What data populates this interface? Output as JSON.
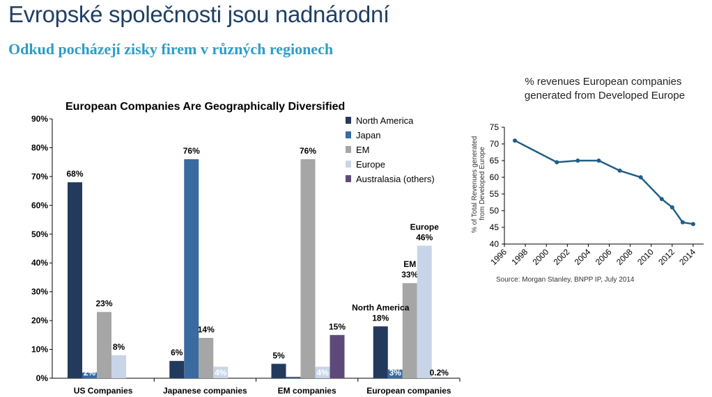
{
  "page": {
    "title": "Evropské společnosti jsou nadnárodní",
    "subtitle": "Odkud pocházejí zisky firem v různých regionech"
  },
  "chart_data": [
    {
      "type": "bar",
      "title": "European Companies Are Geographically Diversified",
      "categories": [
        "US Companies",
        "Japanese companies",
        "EM companies",
        "European companies"
      ],
      "ylim": [
        0,
        90
      ],
      "yticks": [
        0,
        10,
        20,
        30,
        40,
        50,
        60,
        70,
        80,
        90
      ],
      "ytick_labels": [
        "0%",
        "10%",
        "20%",
        "30%",
        "40%",
        "50%",
        "60%",
        "70%",
        "80%",
        "90%"
      ],
      "value_suffix": "%",
      "grid": false,
      "legend": "top-right",
      "series": [
        {
          "name": "North America",
          "color": "#243a5c",
          "values": [
            68,
            6,
            5,
            18
          ],
          "labels": [
            "68%",
            "6%",
            "5%",
            "18%"
          ]
        },
        {
          "name": "Japan",
          "color": "#3a6a9f",
          "values": [
            2,
            76,
            0.5,
            3
          ],
          "labels": [
            "2%",
            "76%",
            "",
            "3%"
          ]
        },
        {
          "name": "EM",
          "color": "#a6a6a6",
          "values": [
            23,
            14,
            76,
            33
          ],
          "labels": [
            "23%",
            "14%",
            "76%",
            "33%"
          ]
        },
        {
          "name": "Europe",
          "color": "#c8d5e8",
          "values": [
            8,
            4,
            4,
            46
          ],
          "labels": [
            "8%",
            "4%",
            "4%",
            "46%"
          ]
        },
        {
          "name": "Australasia (others)",
          "color": "#5e4a7a",
          "values": [
            0,
            0,
            15,
            0.2
          ],
          "labels": [
            "",
            "",
            "15%",
            "0.2%"
          ]
        }
      ],
      "annotations": [
        {
          "category": "European companies",
          "series": "North America",
          "text": "North America"
        },
        {
          "category": "European companies",
          "series": "EM",
          "text": "EM"
        },
        {
          "category": "European companies",
          "series": "Europe",
          "text": "Europe"
        }
      ]
    },
    {
      "type": "line",
      "title": "% revenues European companies generated from Developed Europe",
      "ylabel": "% of Total Revenues generated from Developed Europe",
      "xlim": [
        1996,
        2015
      ],
      "ylim": [
        40,
        75
      ],
      "xticks": [
        1996,
        1998,
        2000,
        2002,
        2004,
        2006,
        2008,
        2010,
        2012,
        2014
      ],
      "yticks": [
        40,
        45,
        50,
        55,
        60,
        65,
        70,
        75
      ],
      "grid": false,
      "color": "#1f5f87",
      "x": [
        1997,
        2001,
        2003,
        2005,
        2007,
        2009,
        2011,
        2012,
        2013,
        2014
      ],
      "y": [
        71,
        64.5,
        65,
        65,
        62,
        60,
        53.5,
        51,
        46.5,
        46
      ],
      "source": "Source: Morgan Stanley, BNPP IP, July 2014"
    }
  ]
}
